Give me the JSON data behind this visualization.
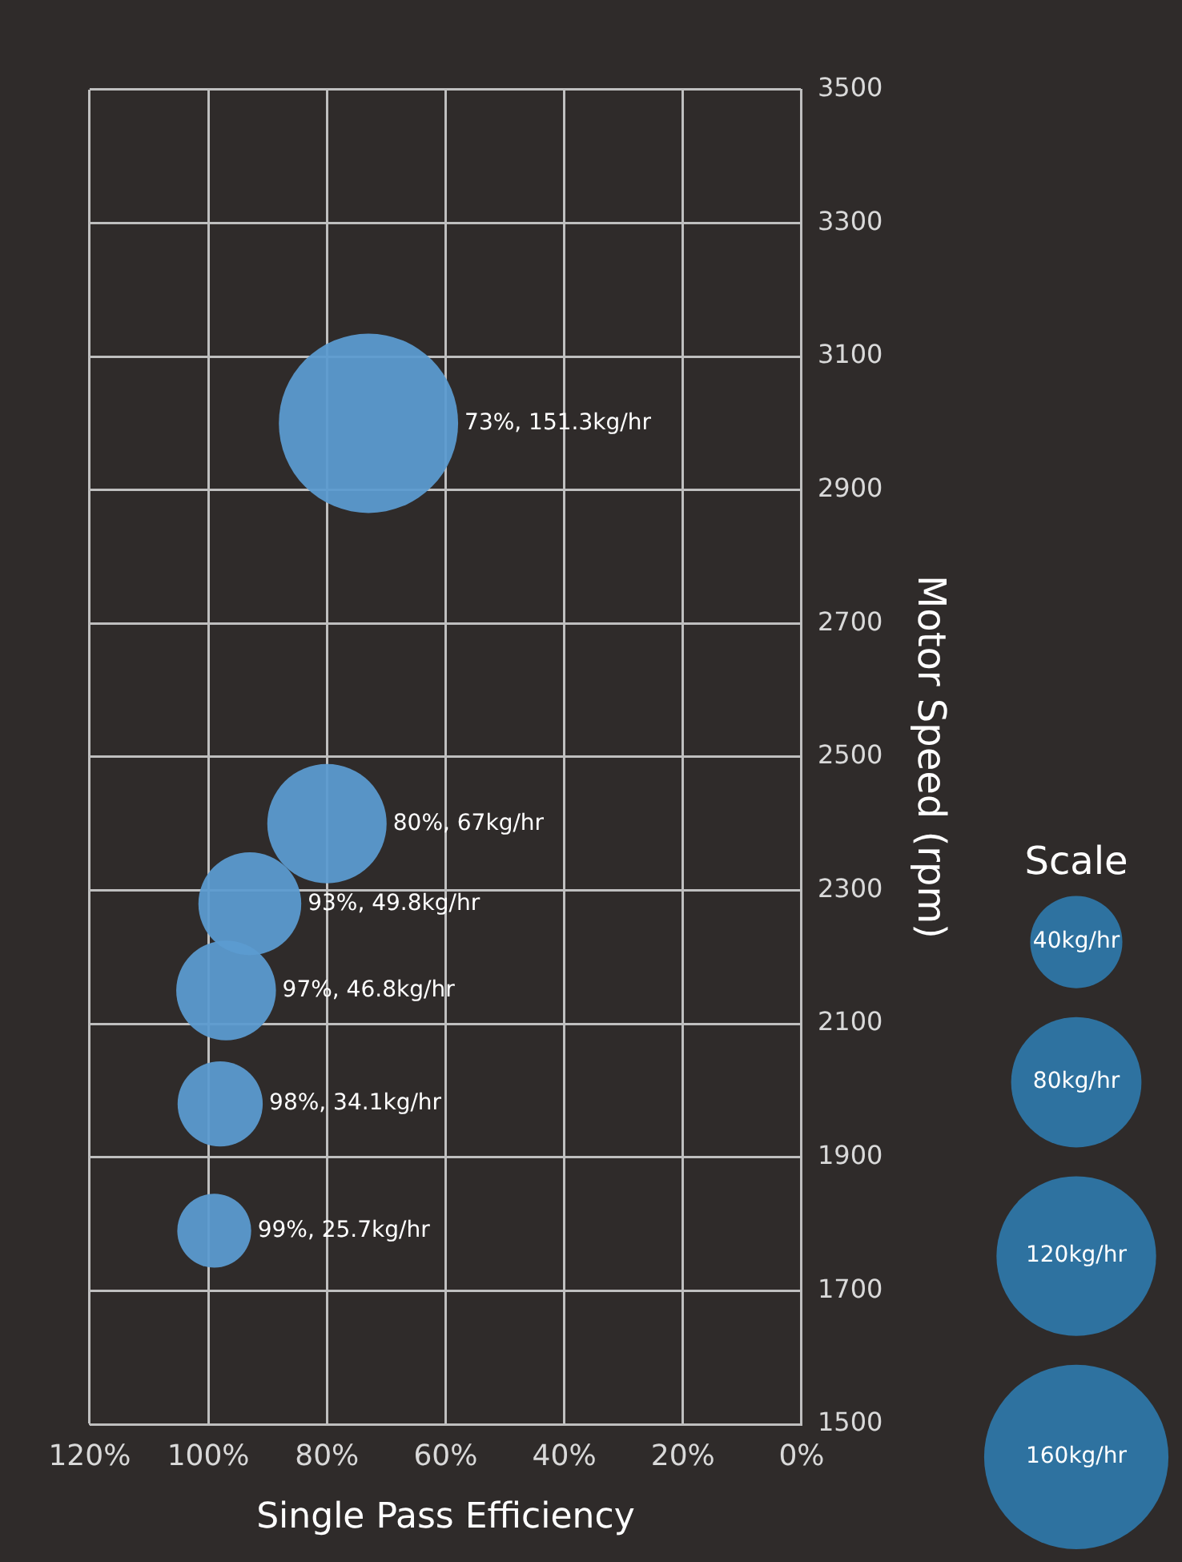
{
  "chart_data": {
    "type": "bubble",
    "xlabel": "Single Pass Efficiency",
    "ylabel": "Motor Speed (rpm)",
    "legend_title": "Scale",
    "x": [
      99,
      98,
      97,
      93,
      80,
      73
    ],
    "values": [
      1790,
      1980,
      2150,
      2280,
      2400,
      3000
    ],
    "sizes": [
      25.7,
      34.1,
      46.8,
      49.8,
      67,
      151.3
    ],
    "value_labels": [
      "99%, 25.7kg/hr",
      "98%, 34.1kg/hr",
      "97%, 46.8kg/hr",
      "93%, 49.8kg/hr",
      "80%, 67kg/hr",
      "73%, 151.3kg/hr"
    ],
    "color": "#5b9bd0",
    "size_legend": [
      {
        "value": 160,
        "label": "160kg/hr"
      },
      {
        "value": 120,
        "label": "120kg/hr"
      },
      {
        "value": 80,
        "label": "80kg/hr"
      },
      {
        "value": 40,
        "label": "40kg/hr"
      }
    ],
    "ylim": [
      1500,
      3500
    ],
    "yticks": [
      1500,
      1700,
      1900,
      2100,
      2300,
      2500,
      2700,
      2900,
      3100,
      3300,
      3500
    ],
    "xlim": [
      120,
      0
    ],
    "xticks": [
      {
        "value": 120,
        "label": "120%"
      },
      {
        "value": 100,
        "label": "100%"
      },
      {
        "value": 80,
        "label": "80%"
      },
      {
        "value": 60,
        "label": "60%"
      },
      {
        "value": 40,
        "label": "40%"
      },
      {
        "value": 20,
        "label": "20%"
      },
      {
        "value": 0,
        "label": "0%"
      }
    ],
    "grid": true
  }
}
